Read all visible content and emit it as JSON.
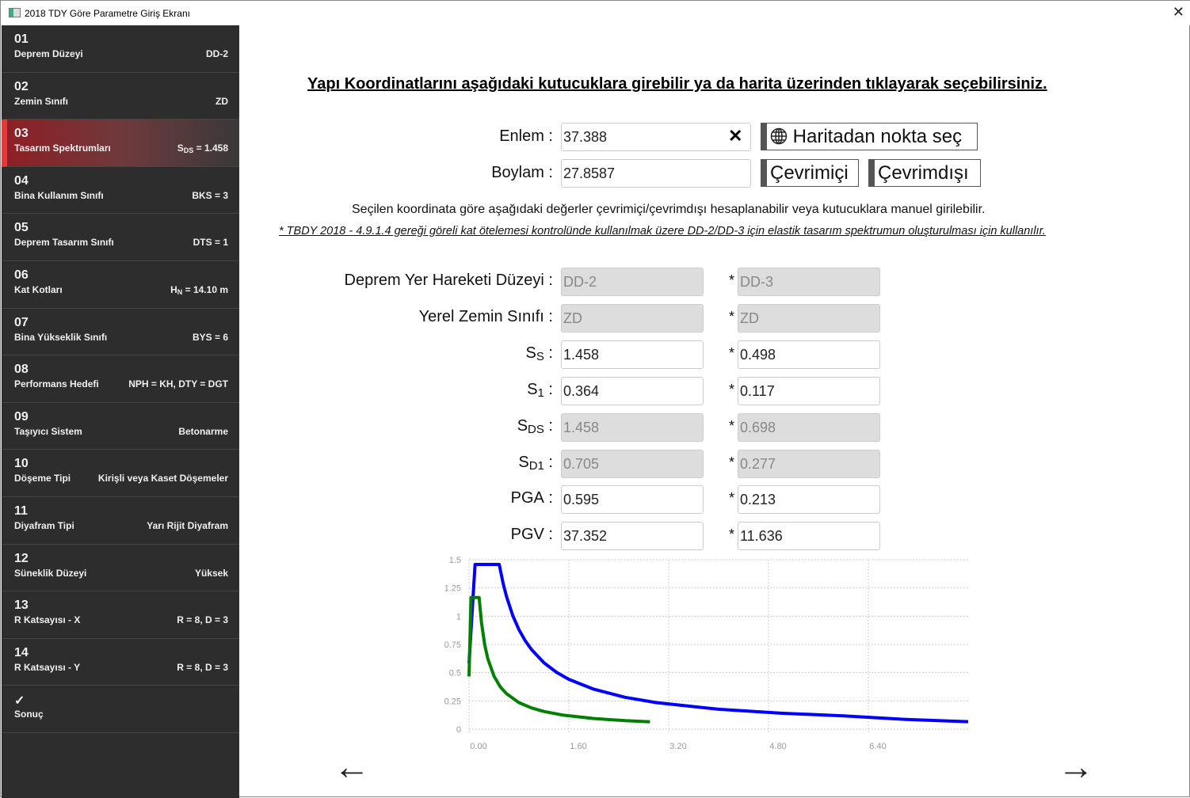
{
  "window": {
    "title": "2018 TDY Göre Parametre Giriş Ekranı",
    "close": "✕"
  },
  "sidebar": {
    "items": [
      {
        "num": "01",
        "label": "Deprem Düzeyi",
        "value": "DD-2"
      },
      {
        "num": "02",
        "label": "Zemin Sınıfı",
        "value": "ZD"
      },
      {
        "num": "03",
        "label": "Tasarım Spektrumları",
        "value_main": "S",
        "value_sub": "DS",
        "value": " = 1.458",
        "active": true
      },
      {
        "num": "04",
        "label": "Bina Kullanım Sınıfı",
        "value": "BKS = 3"
      },
      {
        "num": "05",
        "label": "Deprem Tasarım Sınıfı",
        "value": "DTS = 1"
      },
      {
        "num": "06",
        "label": "Kat Kotları",
        "value_main": "H",
        "value_sub": "N",
        "value": " = 14.10 m"
      },
      {
        "num": "07",
        "label": "Bina Yükseklik Sınıfı",
        "value": "BYS = 6"
      },
      {
        "num": "08",
        "label": "Performans Hedefi",
        "value": "NPH = KH, DTY = DGT"
      },
      {
        "num": "09",
        "label": "Taşıyıcı Sistem",
        "value": "Betonarme"
      },
      {
        "num": "10",
        "label": "Döşeme Tipi",
        "value": "Kirişli veya Kaset Döşemeler"
      },
      {
        "num": "11",
        "label": "Diyafram Tipi",
        "value": "Yarı Rijit Diyafram"
      },
      {
        "num": "12",
        "label": "Süneklik Düzeyi",
        "value": "Yüksek"
      },
      {
        "num": "13",
        "label": "R Katsayısı - X",
        "value": "R = 8, D = 3"
      },
      {
        "num": "14",
        "label": "R Katsayısı - Y",
        "value": "R = 8, D = 3"
      },
      {
        "num": "✓",
        "label": "Sonuç",
        "value": ""
      }
    ]
  },
  "main": {
    "heading": "Yapı Koordinatlarını aşağıdaki kutucuklara girebilir ya da harita üzerinden tıklayarak seçebilirsiniz.",
    "lat_label": "Enlem :",
    "lat_value": "37.388",
    "clear": "✕",
    "lon_label": "Boylam :",
    "lon_value": "27.8587",
    "map_button": "Haritadan nokta seç",
    "online_button": "Çevrimiçi",
    "offline_button": "Çevrimdışı",
    "info": "Seçilen koordinata göre aşağıdaki değerler çevrimiçi/çevrimdışı hesaplanabilir veya kutucuklara manuel girilebilir.",
    "note": "* TBDY 2018 - 4.9.1.4 gereği göreli kat ötelemesi kontrolünde kullanılmak üzere DD-2/DD-3 için elastik tasarım spektrumun oluşturulması için kullanılır.",
    "star": "*",
    "rows": [
      {
        "label": "Deprem Yer Hareketi Düzeyi",
        "sub": "",
        "colon": " :",
        "v1": "DD-2",
        "v2": "DD-3",
        "readonly": true
      },
      {
        "label": "Yerel Zemin Sınıfı",
        "sub": "",
        "colon": " :",
        "v1": "ZD",
        "v2": "ZD",
        "readonly": true
      },
      {
        "label": "S",
        "sub": "S",
        "colon": " :",
        "v1": "1.458",
        "v2": "0.498",
        "readonly": false
      },
      {
        "label": "S",
        "sub": "1",
        "colon": " :",
        "v1": "0.364",
        "v2": "0.117",
        "readonly": false
      },
      {
        "label": "S",
        "sub": "DS",
        "colon": " :",
        "v1": "1.458",
        "v2": "0.698",
        "readonly": true
      },
      {
        "label": "S",
        "sub": "D1",
        "colon": " :",
        "v1": "0.705",
        "v2": "0.277",
        "readonly": true
      },
      {
        "label": "PGA",
        "sub": "",
        "colon": " :",
        "v1": "0.595",
        "v2": "0.213",
        "readonly": false
      },
      {
        "label": "PGV",
        "sub": "",
        "colon": " :",
        "v1": "37.352",
        "v2": "11.636",
        "readonly": false
      }
    ],
    "back": "←",
    "next": "→"
  },
  "chart_data": {
    "type": "line",
    "xlim": [
      0,
      8
    ],
    "ylim": [
      0,
      1.5
    ],
    "grid": true,
    "xticks": [
      "0.00",
      "1.60",
      "3.20",
      "4.80",
      "6.40"
    ],
    "xtick_values": [
      0,
      1.6,
      3.2,
      4.8,
      6.4
    ],
    "yticks": [
      "0",
      "0.25",
      "0.5",
      "0.75",
      "1",
      "1.25",
      "1.5"
    ],
    "ytick_values": [
      0,
      0.25,
      0.5,
      0.75,
      1,
      1.25,
      1.5
    ],
    "series": [
      {
        "color": "#0000ff",
        "x": [
          0,
          0.097,
          0.484,
          0.55,
          0.6,
          0.7,
          0.8,
          0.9,
          1.0,
          1.2,
          1.4,
          1.6,
          2.0,
          2.5,
          3.0,
          4.0,
          5.0,
          6.0,
          7.0,
          8.0
        ],
        "y": [
          0.583,
          1.458,
          1.458,
          1.282,
          1.175,
          1.007,
          0.881,
          0.783,
          0.705,
          0.588,
          0.504,
          0.441,
          0.353,
          0.282,
          0.235,
          0.176,
          0.141,
          0.118,
          0.086,
          0.066
        ]
      },
      {
        "color": "#008000",
        "x": [
          0,
          0.032,
          0.161,
          0.2,
          0.25,
          0.3,
          0.4,
          0.5,
          0.6,
          0.8,
          1.0,
          1.2,
          1.5,
          2.0,
          2.5,
          2.9
        ],
        "y": [
          0.467,
          1.166,
          1.166,
          0.939,
          0.751,
          0.626,
          0.469,
          0.375,
          0.313,
          0.235,
          0.188,
          0.156,
          0.125,
          0.094,
          0.075,
          0.065
        ]
      }
    ]
  }
}
